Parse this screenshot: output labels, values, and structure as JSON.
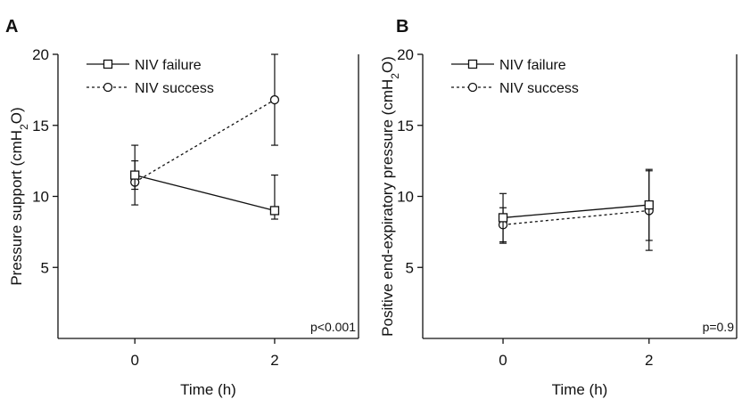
{
  "chart_data": [
    {
      "type": "line",
      "panel_label": "A",
      "x": [
        0,
        2
      ],
      "xticks": [
        "0",
        "2"
      ],
      "xlim": [
        -1.1,
        3.2
      ],
      "ylim": [
        0,
        20
      ],
      "yticks": [
        "5",
        "10",
        "15",
        "20"
      ],
      "xlabel": "Time (h)",
      "ylabel": "Pressure support (cmH2O)",
      "annotation": "p<0.001",
      "series": [
        {
          "name": "NIV failure",
          "values": [
            11.5,
            9.0
          ],
          "error": [
            [
              1.0,
              2.1
            ],
            [
              0.6,
              2.5
            ]
          ],
          "marker": "square",
          "linestyle": "solid"
        },
        {
          "name": "NIV success",
          "values": [
            11.0,
            16.8
          ],
          "error": [
            [
              1.6,
              1.5
            ],
            [
              3.2,
              3.2
            ]
          ],
          "marker": "circle",
          "linestyle": "dotted"
        }
      ],
      "legend": "top-left"
    },
    {
      "type": "line",
      "panel_label": "B",
      "x": [
        0,
        2
      ],
      "xticks": [
        "0",
        "2"
      ],
      "xlim": [
        -1.1,
        3.2
      ],
      "ylim": [
        0,
        20
      ],
      "yticks": [
        "5",
        "10",
        "15",
        "20"
      ],
      "xlabel": "Time (h)",
      "ylabel": "Positive end-expiratory pressure (cmH2O)",
      "annotation": "p=0.9",
      "series": [
        {
          "name": "NIV failure",
          "values": [
            8.5,
            9.4
          ],
          "error": [
            [
              1.8,
              1.7
            ],
            [
              2.5,
              2.4
            ]
          ],
          "marker": "square",
          "linestyle": "solid"
        },
        {
          "name": "NIV success",
          "values": [
            8.0,
            9.0
          ],
          "error": [
            [
              1.2,
              1.2
            ],
            [
              2.8,
              2.9
            ]
          ],
          "marker": "circle",
          "linestyle": "dotted"
        }
      ],
      "legend": "top-left"
    }
  ]
}
